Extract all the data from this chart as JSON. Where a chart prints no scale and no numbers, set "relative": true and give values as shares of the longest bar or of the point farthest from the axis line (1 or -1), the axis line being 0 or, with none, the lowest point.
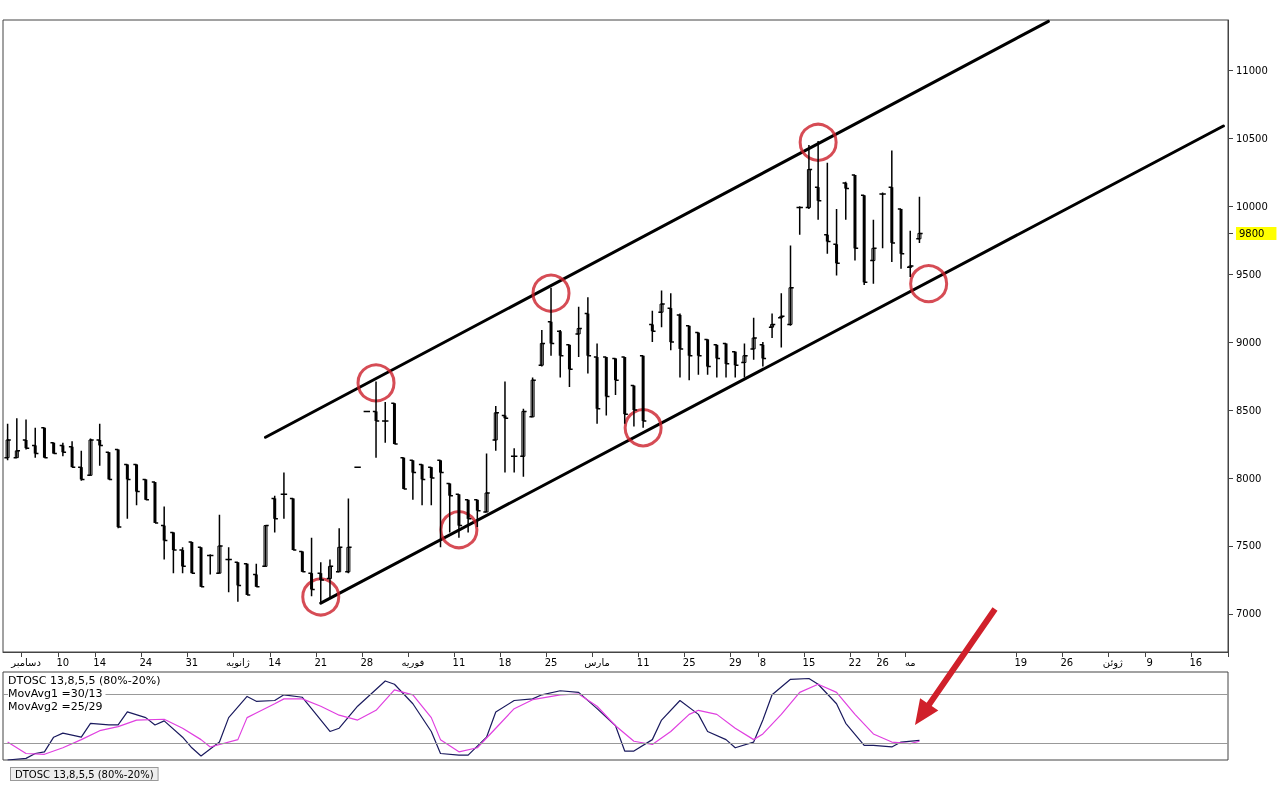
{
  "chart_data": [
    {
      "type": "candlestick",
      "color": "#000000",
      "ylim": [
        6720,
        11370
      ],
      "yticks": [
        7000,
        7500,
        8000,
        8500,
        9000,
        9500,
        {
          "value": 9800,
          "label": "9800"
        },
        10000,
        10500,
        11000
      ],
      "categories": [
        null,
        null,
        "دسامبر",
        null,
        null,
        null,
        "10",
        null,
        null,
        null,
        "14",
        null,
        null,
        null,
        null,
        "24",
        null,
        null,
        null,
        null,
        "31",
        null,
        null,
        null,
        null,
        "ژانویه",
        null,
        null,
        null,
        "14",
        null,
        null,
        null,
        null,
        "21",
        null,
        null,
        null,
        null,
        "28",
        null,
        null,
        null,
        null,
        "فوریه",
        null,
        null,
        null,
        null,
        "11",
        null,
        null,
        null,
        null,
        "18",
        null,
        null,
        null,
        null,
        "25",
        null,
        null,
        null,
        null,
        "مارس",
        null,
        null,
        null,
        null,
        "11",
        null,
        null,
        null,
        null,
        "25",
        null,
        null,
        null,
        null,
        "29",
        null,
        null,
        "8",
        null,
        null,
        null,
        null,
        "15",
        null,
        null,
        null,
        null,
        "22",
        null,
        null,
        "26",
        null,
        null,
        "مه",
        null,
        null,
        null,
        null,
        null,
        null,
        null,
        null,
        null,
        null,
        null,
        "19",
        null,
        null,
        null,
        null,
        "26",
        null,
        null,
        null,
        null,
        "ژوئن",
        null,
        null,
        null,
        "9",
        null,
        null,
        null,
        null,
        "16",
        null,
        null,
        null
      ],
      "ohlc": [
        [
          8150,
          8400,
          8130,
          8280
        ],
        [
          8150,
          8440,
          8150,
          8200
        ],
        [
          8280,
          8430,
          8210,
          8220
        ],
        [
          8240,
          8370,
          8150,
          8180
        ],
        [
          8370,
          8370,
          8150,
          8150
        ],
        [
          8260,
          8260,
          8180,
          8180
        ],
        [
          8240,
          8260,
          8160,
          8190
        ],
        [
          8230,
          8270,
          8080,
          8080
        ],
        [
          8080,
          8200,
          7980,
          7990
        ],
        [
          8020,
          8290,
          8020,
          8280
        ],
        [
          8280,
          8400,
          8090,
          8240
        ],
        [
          8190,
          8190,
          7990,
          7990
        ],
        [
          8210,
          8210,
          7630,
          7640
        ],
        [
          8100,
          8100,
          7700,
          7990
        ],
        [
          8100,
          8100,
          7800,
          7900
        ],
        [
          7990,
          7990,
          7840,
          7840
        ],
        [
          7970,
          7970,
          7670,
          7670
        ],
        [
          7650,
          7790,
          7400,
          7540
        ],
        [
          7600,
          7600,
          7300,
          7470
        ],
        [
          7470,
          7490,
          7300,
          7350
        ],
        [
          7530,
          7530,
          7300,
          7300
        ],
        [
          7490,
          7490,
          7200,
          7200
        ],
        [
          7430,
          7440,
          7290,
          7430
        ],
        [
          7300,
          7730,
          7300,
          7500
        ],
        [
          7400,
          7490,
          7160,
          7400
        ],
        [
          7380,
          7380,
          7090,
          7210
        ],
        [
          7370,
          7370,
          7140,
          7140
        ],
        [
          7290,
          7370,
          7200,
          7200
        ],
        [
          7350,
          7650,
          7350,
          7650
        ],
        [
          7850,
          7870,
          7600,
          7700
        ],
        [
          7880,
          8040,
          7700,
          7880
        ],
        [
          7850,
          7850,
          7470,
          7470
        ],
        [
          7460,
          7460,
          7310,
          7310
        ],
        [
          7300,
          7560,
          7130,
          7180
        ],
        [
          7300,
          7380,
          7080,
          7250
        ],
        [
          7260,
          7400,
          7120,
          7350
        ],
        [
          7310,
          7630,
          7310,
          7490
        ],
        [
          7310,
          7850,
          7300,
          7490
        ],
        [
          8080,
          8080,
          8080,
          8080
        ],
        [
          8490,
          8490,
          8490,
          8490
        ],
        [
          8490,
          8710,
          8150,
          8420
        ],
        [
          8420,
          8560,
          8260,
          8420
        ],
        [
          8550,
          8550,
          8250,
          8250
        ],
        [
          8150,
          8150,
          7920,
          7920
        ],
        [
          8130,
          8130,
          7840,
          8040
        ],
        [
          8100,
          8100,
          7800,
          7990
        ],
        [
          8080,
          8080,
          7800,
          8000
        ],
        [
          8130,
          8130,
          7490,
          8040
        ],
        [
          7960,
          7960,
          7600,
          7870
        ],
        [
          7880,
          7880,
          7560,
          7650
        ],
        [
          7840,
          7840,
          7600,
          7700
        ],
        [
          7840,
          7840,
          7640,
          7760
        ],
        [
          7750,
          8180,
          7750,
          7890
        ],
        [
          8280,
          8530,
          8200,
          8480
        ],
        [
          8460,
          8710,
          8040,
          8440
        ],
        [
          8160,
          8220,
          8040,
          8160
        ],
        [
          8160,
          8510,
          8010,
          8490
        ],
        [
          8450,
          8740,
          8450,
          8720
        ],
        [
          8830,
          9090,
          8820,
          8990
        ],
        [
          9150,
          9400,
          8900,
          8990
        ],
        [
          9080,
          9090,
          8740,
          8900
        ],
        [
          8980,
          8980,
          8670,
          8800
        ],
        [
          9060,
          9260,
          8890,
          9100
        ],
        [
          9210,
          9330,
          8770,
          8900
        ],
        [
          8890,
          8990,
          8400,
          8510
        ],
        [
          8890,
          8890,
          8460,
          8600
        ],
        [
          8880,
          8880,
          8610,
          8720
        ],
        [
          8890,
          8890,
          8400,
          8470
        ],
        [
          8680,
          8680,
          8380,
          8500
        ],
        [
          8900,
          8900,
          8370,
          8420
        ],
        [
          9130,
          9230,
          9000,
          9080
        ],
        [
          9220,
          9380,
          9110,
          9280
        ],
        [
          9250,
          9360,
          8940,
          9000
        ],
        [
          9200,
          9210,
          8740,
          8950
        ],
        [
          9120,
          9120,
          8720,
          8900
        ],
        [
          9070,
          9070,
          8760,
          8900
        ],
        [
          9020,
          9020,
          8760,
          8820
        ],
        [
          8980,
          8980,
          8740,
          8880
        ],
        [
          8990,
          8990,
          8740,
          8840
        ],
        [
          8930,
          8930,
          8740,
          8830
        ],
        [
          8850,
          8990,
          8740,
          8900
        ],
        [
          8950,
          9180,
          8870,
          9030
        ],
        [
          8980,
          9000,
          8820,
          8880
        ],
        [
          9110,
          9210,
          9030,
          9130
        ],
        [
          9180,
          9360,
          8960,
          9190
        ],
        [
          9130,
          9710,
          9120,
          9400
        ],
        [
          9990,
          10000,
          9790,
          9990
        ],
        [
          9990,
          10450,
          9980,
          10270
        ],
        [
          10140,
          10480,
          9900,
          10040
        ],
        [
          9790,
          10320,
          9650,
          9740
        ],
        [
          9720,
          9980,
          9490,
          9580
        ],
        [
          10170,
          10180,
          9900,
          10130
        ],
        [
          10230,
          10230,
          9600,
          9690
        ],
        [
          10080,
          10080,
          9420,
          9440
        ],
        [
          9600,
          9900,
          9430,
          9690
        ],
        [
          10090,
          10100,
          9690,
          10090
        ],
        [
          10140,
          10410,
          9590,
          9730
        ],
        [
          9980,
          9980,
          9540,
          9650
        ],
        [
          9550,
          9820,
          9480,
          9560
        ],
        [
          9760,
          10070,
          9730,
          9800
        ],
        null,
        null,
        null,
        null,
        null,
        null,
        null,
        null,
        null,
        null,
        null,
        null,
        null,
        null,
        null,
        null,
        null,
        null,
        null,
        null,
        null,
        null,
        null,
        null,
        null,
        null,
        null,
        null,
        null,
        null,
        null,
        null,
        null
      ],
      "series": [
        {
          "type": "line",
          "color": "#000000",
          "values": [
            null,
            null,
            null,
            null,
            null,
            null,
            null,
            null,
            null,
            null,
            null,
            null,
            null,
            null,
            null,
            null,
            null,
            null,
            null,
            null,
            null,
            null,
            null,
            null,
            null,
            null,
            null,
            null,
            null,
            null,
            null,
            null,
            null,
            null,
            7080,
            null,
            null,
            null,
            null,
            null,
            null,
            null,
            null,
            null,
            null,
            null,
            null,
            null,
            null,
            null,
            null,
            null,
            null,
            null,
            null,
            null,
            null,
            null,
            null,
            null,
            null,
            null,
            null,
            null,
            null,
            null,
            null,
            null,
            null,
            null,
            null,
            null,
            null,
            null,
            null,
            null,
            null,
            null,
            null,
            null,
            null,
            null,
            null,
            null,
            null,
            null,
            null,
            null,
            null,
            null,
            null,
            null,
            null,
            null,
            null,
            null,
            null,
            null,
            null,
            null,
            null,
            null,
            null,
            null,
            null,
            null,
            null,
            null,
            null,
            null,
            null,
            null,
            null,
            null,
            null,
            null,
            null,
            null,
            null,
            null,
            null,
            null,
            null,
            null,
            null,
            null,
            null,
            null,
            null,
            null,
            null,
            null,
            10590
          ]
        },
        {
          "type": "line",
          "color": "#000000",
          "values": [
            null,
            null,
            null,
            null,
            null,
            null,
            null,
            null,
            null,
            null,
            null,
            null,
            null,
            null,
            null,
            null,
            null,
            null,
            null,
            null,
            null,
            null,
            null,
            null,
            null,
            null,
            null,
            null,
            8300,
            null,
            null,
            null,
            null,
            null,
            null,
            null,
            null,
            null,
            null,
            null,
            null,
            null,
            null,
            null,
            null,
            null,
            null,
            null,
            null,
            null,
            null,
            null,
            null,
            null,
            null,
            null,
            null,
            null,
            null,
            null,
            null,
            null,
            null,
            null,
            null,
            null,
            null,
            null,
            null,
            null,
            null,
            null,
            null,
            null,
            null,
            null,
            null,
            null,
            null,
            null,
            null,
            null,
            null,
            null,
            null,
            null,
            null,
            null,
            null,
            null,
            null,
            null,
            null,
            null,
            null,
            null,
            null,
            null,
            null,
            null,
            null,
            null,
            null,
            null,
            null,
            null,
            null,
            null,
            null,
            null,
            null,
            null,
            null,
            11360,
            null,
            null,
            null,
            null,
            null,
            null,
            null,
            null,
            null,
            null,
            null,
            null,
            null,
            null,
            null,
            null,
            null,
            null,
            null
          ]
        },
        {
          "type": "scatter",
          "marker": "circle",
          "color": "#cc1f2a",
          "values": [
            null,
            null,
            null,
            null,
            null,
            null,
            null,
            null,
            null,
            null,
            null,
            null,
            null,
            null,
            null,
            null,
            null,
            null,
            null,
            null,
            null,
            null,
            null,
            null,
            null,
            null,
            null,
            null,
            null,
            null,
            null,
            null,
            null,
            null,
            7125,
            null,
            null,
            null,
            null,
            null,
            8700,
            null,
            null,
            null,
            null,
            null,
            null,
            null,
            null,
            7620,
            null,
            null,
            null,
            null,
            null,
            null,
            null,
            null,
            null,
            9360,
            null,
            null,
            null,
            null,
            null,
            null,
            null,
            null,
            null,
            8370,
            null,
            null,
            null,
            null,
            null,
            null,
            null,
            null,
            null,
            null,
            null,
            null,
            null,
            null,
            null,
            null,
            null,
            null,
            10470,
            null,
            null,
            null,
            null,
            null,
            null,
            null,
            null,
            null,
            null,
            null,
            9430,
            null,
            null,
            null,
            null,
            null,
            null,
            null,
            null,
            null,
            null,
            null,
            null,
            null,
            null,
            null,
            null,
            null,
            null,
            null,
            null,
            null,
            null,
            null,
            null,
            null,
            null,
            null,
            null,
            null,
            null,
            null,
            null
          ]
        }
      ]
    },
    {
      "type": "line",
      "relative": true,
      "title": "DTOSC 13,8,5,5 (80%-20%)",
      "categories": [
        null,
        null,
        null,
        null,
        null,
        null,
        null,
        null,
        null,
        null,
        null,
        null,
        null,
        null,
        null,
        null,
        null,
        null,
        null,
        null,
        null,
        null,
        null,
        null,
        null,
        null,
        null,
        null,
        null,
        null,
        null,
        null,
        null,
        null,
        null,
        null,
        null,
        null,
        null,
        null,
        null,
        null,
        null,
        null,
        null,
        null,
        null,
        null,
        null,
        null,
        null,
        null,
        null,
        null,
        null,
        null,
        null,
        null,
        null,
        null,
        null,
        null,
        null,
        null,
        null,
        null,
        null,
        null,
        null,
        null,
        null,
        null,
        null,
        null,
        null,
        null,
        null,
        null,
        null,
        null,
        null,
        null,
        null,
        null,
        null,
        null,
        null,
        null,
        null,
        null,
        null,
        null,
        null,
        null,
        null,
        null,
        null,
        null,
        null,
        null,
        null,
        null,
        null,
        null,
        null,
        null,
        null,
        null,
        null,
        null,
        null,
        null,
        null,
        null,
        null,
        null,
        null,
        null,
        null,
        null,
        null,
        null,
        null,
        null,
        null,
        null,
        null,
        null,
        null,
        null,
        null,
        null,
        null
      ],
      "annotations": [
        "MovAvg1 =30/13",
        "MovAvg2 =25/29",
        "DTOSC 13,8,5,5 (80%-20%)"
      ],
      "ref_lines": [
        {
          "axis": "y",
          "value": 0.81,
          "color": "#999999"
        },
        {
          "axis": "y",
          "value": 0.2,
          "color": "#999999"
        }
      ],
      "series": [
        {
          "color": "#1a1a5e",
          "values": [
            0.0,
            null,
            0.02,
            0.08,
            0.1,
            0.28,
            0.33,
            null,
            0.28,
            0.45,
            null,
            0.43,
            0.43,
            0.59,
            null,
            0.52,
            0.43,
            0.48,
            null,
            0.28,
            0.15,
            0.05,
            null,
            0.22,
            0.52,
            null,
            0.78,
            0.72,
            null,
            0.73,
            0.8,
            null,
            0.77,
            0.63,
            null,
            0.35,
            0.39,
            null,
            0.66,
            null,
            null,
            0.97,
            0.93,
            null,
            0.69,
            null,
            0.35,
            0.08,
            null,
            0.06,
            0.06,
            null,
            0.28,
            0.59,
            null,
            0.73,
            null,
            0.75,
            0.8,
            null,
            0.85,
            null,
            0.83,
            null,
            0.63,
            null,
            0.42,
            0.11,
            0.11,
            null,
            0.25,
            0.49,
            null,
            0.73,
            null,
            0.56,
            0.35,
            null,
            0.25,
            0.15,
            null,
            0.22,
            0.49,
            0.8,
            null,
            0.99,
            null,
            1.0,
            0.93,
            null,
            0.69,
            0.45,
            null,
            0.18,
            0.18,
            null,
            0.16,
            0.22,
            null,
            0.24,
            null,
            null,
            null,
            null,
            null,
            null,
            null,
            null,
            null,
            null,
            null,
            null,
            null,
            null,
            null,
            null,
            null,
            null,
            null,
            null,
            null,
            null,
            null,
            null,
            null,
            null,
            null,
            null,
            null,
            null,
            null,
            null,
            null
          ]
        },
        {
          "color": "#e040e0",
          "values": [
            0.22,
            null,
            0.08,
            null,
            0.07,
            null,
            0.15,
            null,
            0.25,
            null,
            0.36,
            null,
            0.41,
            null,
            0.49,
            null,
            null,
            0.5,
            null,
            0.39,
            null,
            0.25,
            0.16,
            null,
            null,
            0.25,
            0.52,
            null,
            null,
            0.69,
            0.75,
            null,
            0.75,
            null,
            0.66,
            null,
            0.55,
            null,
            0.49,
            null,
            0.61,
            null,
            0.86,
            null,
            0.8,
            null,
            0.52,
            0.25,
            null,
            0.1,
            null,
            0.15,
            null,
            0.39,
            null,
            0.63,
            null,
            0.74,
            null,
            null,
            0.8,
            null,
            0.81,
            null,
            0.66,
            null,
            0.42,
            null,
            0.23,
            null,
            0.19,
            null,
            0.35,
            null,
            0.56,
            0.61,
            null,
            0.56,
            null,
            0.39,
            null,
            0.25,
            0.32,
            null,
            0.56,
            null,
            0.83,
            null,
            0.93,
            null,
            0.83,
            null,
            0.56,
            null,
            0.32,
            null,
            0.22,
            null,
            0.2,
            0.23,
            null,
            null,
            null,
            null,
            null,
            null,
            null,
            null,
            null,
            null,
            null,
            null,
            null,
            null,
            null,
            null,
            null,
            null,
            null,
            null,
            null,
            null,
            null,
            null,
            null,
            null,
            null,
            null,
            null,
            null,
            null,
            null,
            null
          ]
        }
      ]
    }
  ]
}
